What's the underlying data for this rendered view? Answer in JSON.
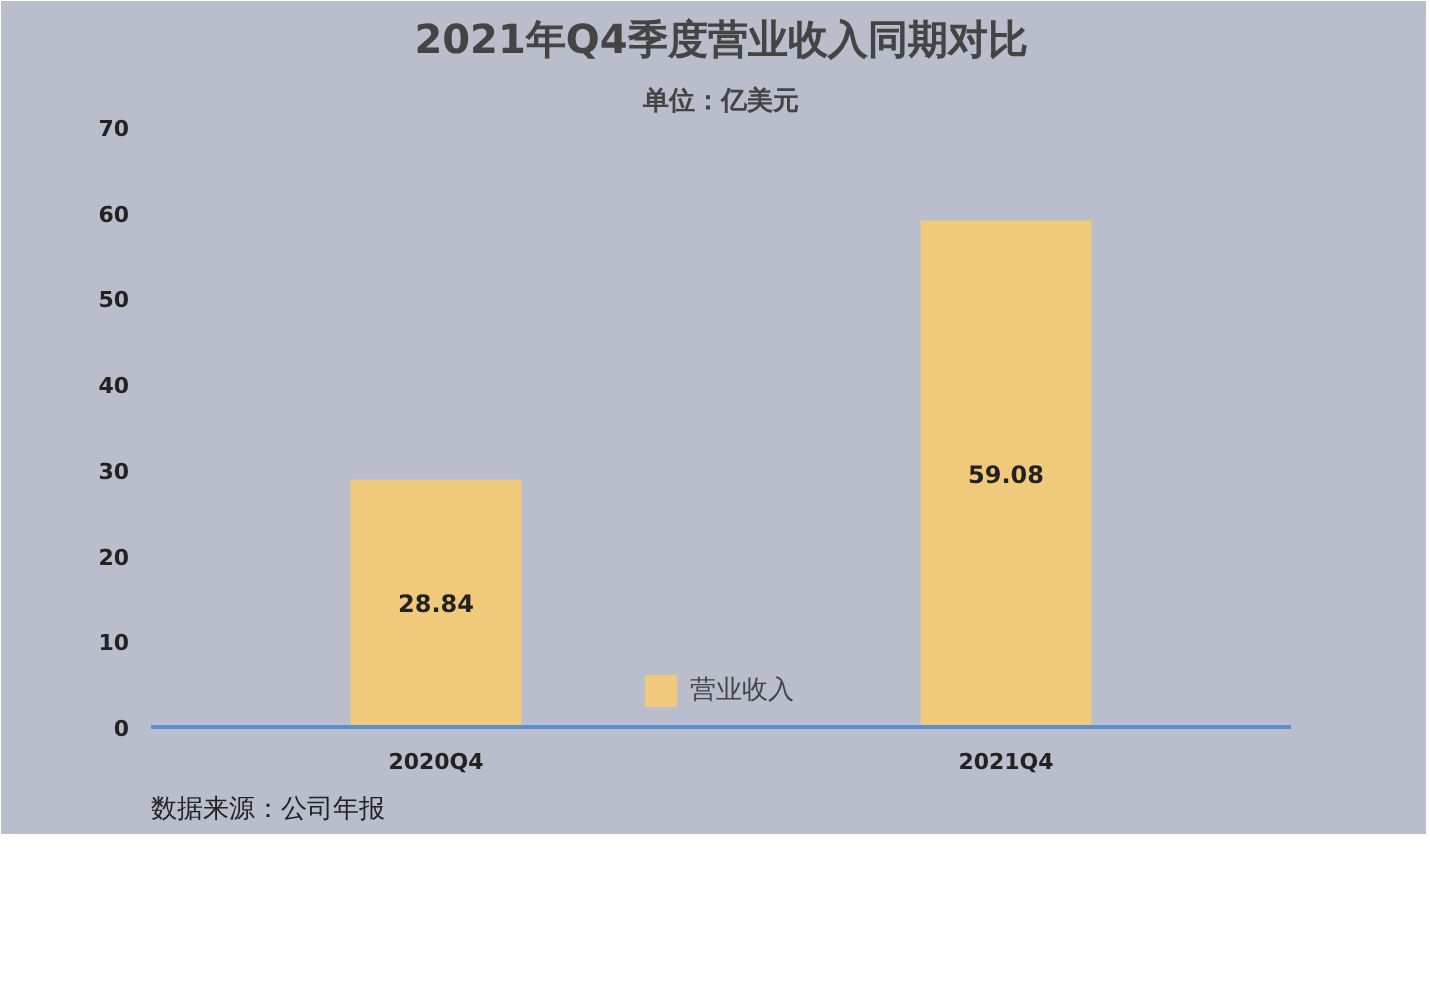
{
  "chart_data": {
    "type": "bar",
    "title": "2021年Q4季度营业收入同期对比",
    "subtitle": "单位：亿美元",
    "categories": [
      "2020Q4",
      "2021Q4"
    ],
    "series": [
      {
        "name": "营业收入",
        "color": "#f0c97b",
        "values": [
          28.84,
          59.08
        ]
      }
    ],
    "ylim": [
      0,
      70
    ],
    "yticks": [
      0,
      10,
      20,
      30,
      40,
      50,
      60,
      70
    ],
    "grid": false,
    "legend": "bottom",
    "data_labels": true,
    "annotations": [
      "数据来源：公司年报"
    ]
  }
}
